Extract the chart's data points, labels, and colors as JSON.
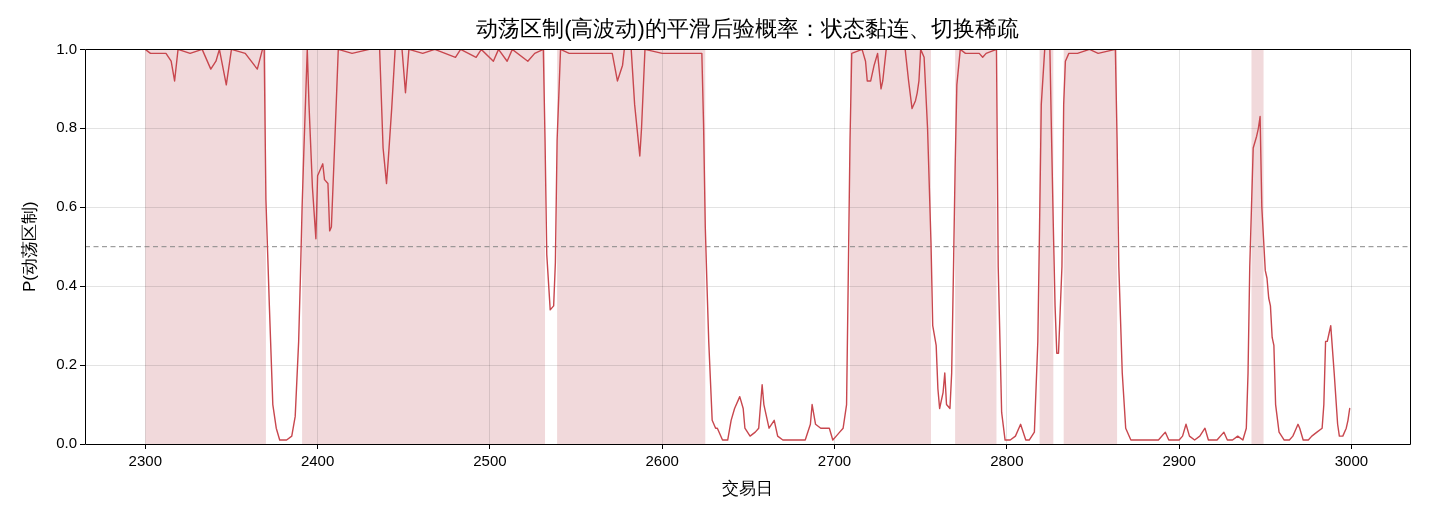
{
  "chart_data": {
    "type": "line",
    "title": "动荡区制(高波动)的平滑后验概率：状态黏连、切换稀疏",
    "xlabel": "交易日",
    "ylabel": "P(动荡区制)",
    "series": [
      {
        "color": "#c8474e",
        "x": [
          2300,
          2303,
          2312,
          2315,
          2317,
          2319,
          2326,
          2333,
          2338,
          2341,
          2343,
          2347,
          2350,
          2358,
          2365,
          2368,
          2369,
          2370,
          2372,
          2374,
          2376,
          2378,
          2382,
          2385,
          2387,
          2389,
          2390,
          2391,
          2392,
          2394,
          2395,
          2397,
          2399,
          2400,
          2403,
          2404,
          2406,
          2407,
          2408,
          2410,
          2412,
          2420,
          2430,
          2436,
          2438,
          2440,
          2441,
          2443,
          2445,
          2449,
          2451,
          2453,
          2461,
          2468,
          2480,
          2483,
          2492,
          2495,
          2502,
          2505,
          2510,
          2513,
          2522,
          2526,
          2531,
          2532,
          2533,
          2535,
          2537,
          2538,
          2539,
          2541,
          2546,
          2552,
          2559,
          2565,
          2571,
          2574,
          2577,
          2578,
          2582,
          2584,
          2587,
          2588,
          2590,
          2600,
          2610,
          2620,
          2623,
          2624,
          2625,
          2626,
          2627,
          2629,
          2631,
          2632,
          2635,
          2638,
          2640,
          2642,
          2645,
          2647,
          2648,
          2651,
          2654,
          2656,
          2658,
          2659,
          2662,
          2665,
          2667,
          2670,
          2677,
          2683,
          2686,
          2687,
          2689,
          2692,
          2694,
          2697,
          2699,
          2701,
          2703,
          2705,
          2707,
          2708,
          2709,
          2710,
          2716,
          2718,
          2719,
          2721,
          2723,
          2725,
          2727,
          2728,
          2730,
          2741,
          2743,
          2745,
          2747,
          2748,
          2749,
          2750,
          2752,
          2754,
          2756,
          2757,
          2759,
          2760,
          2761,
          2763,
          2764,
          2765,
          2767,
          2768,
          2769,
          2770,
          2771,
          2773,
          2776,
          2784,
          2786,
          2788,
          2794,
          2795,
          2797,
          2799,
          2802,
          2805,
          2808,
          2811,
          2813,
          2816,
          2818,
          2819,
          2820,
          2822,
          2825,
          2826,
          2827,
          2828,
          2829,
          2830,
          2832,
          2833,
          2834,
          2836,
          2841,
          2848,
          2853,
          2863,
          2864,
          2865,
          2867,
          2869,
          2872,
          2875,
          2880,
          2883,
          2888,
          2892,
          2894,
          2900,
          2902,
          2904,
          2906,
          2909,
          2912,
          2915,
          2917,
          2922,
          2926,
          2928,
          2931,
          2934,
          2937,
          2939,
          2940,
          2941,
          2942,
          2943,
          2945,
          2946,
          2947,
          2948,
          2949,
          2950,
          2951,
          2952,
          2953,
          2954,
          2955,
          2956,
          2958,
          2961,
          2964,
          2966,
          2967,
          2969,
          2970,
          2972,
          2975,
          2977,
          2980,
          2983,
          2984,
          2985,
          2986,
          2987,
          2988,
          2990,
          2992,
          2993,
          2995,
          2997,
          2998,
          2999
        ],
        "values": [
          1.0,
          0.99,
          0.99,
          0.97,
          0.92,
          1.0,
          0.99,
          1.0,
          0.95,
          0.97,
          1.0,
          0.91,
          1.0,
          0.99,
          0.95,
          1.0,
          1.0,
          0.62,
          0.35,
          0.1,
          0.04,
          0.01,
          0.01,
          0.02,
          0.07,
          0.26,
          0.42,
          0.6,
          0.74,
          1.0,
          0.86,
          0.65,
          0.52,
          0.68,
          0.71,
          0.67,
          0.66,
          0.54,
          0.55,
          0.77,
          1.0,
          0.99,
          1.0,
          1.0,
          0.75,
          0.66,
          0.72,
          0.85,
          1.0,
          1.0,
          0.89,
          1.0,
          0.99,
          1.0,
          0.98,
          1.0,
          0.98,
          1.0,
          0.97,
          1.0,
          0.97,
          1.0,
          0.97,
          0.99,
          1.0,
          0.77,
          0.48,
          0.34,
          0.35,
          0.46,
          0.77,
          1.0,
          0.99,
          0.99,
          0.99,
          0.99,
          0.99,
          0.92,
          0.96,
          1.0,
          1.0,
          0.86,
          0.73,
          0.8,
          1.0,
          0.99,
          0.99,
          0.99,
          0.99,
          0.81,
          0.55,
          0.4,
          0.26,
          0.06,
          0.04,
          0.04,
          0.01,
          0.01,
          0.06,
          0.09,
          0.12,
          0.09,
          0.04,
          0.02,
          0.03,
          0.04,
          0.15,
          0.1,
          0.04,
          0.06,
          0.02,
          0.01,
          0.01,
          0.01,
          0.05,
          0.1,
          0.05,
          0.04,
          0.04,
          0.04,
          0.01,
          0.02,
          0.03,
          0.04,
          0.1,
          0.43,
          0.77,
          0.99,
          1.0,
          0.97,
          0.92,
          0.92,
          0.96,
          0.99,
          0.9,
          0.92,
          1.0,
          1.0,
          0.92,
          0.85,
          0.87,
          0.89,
          0.92,
          1.0,
          0.98,
          0.8,
          0.51,
          0.3,
          0.25,
          0.14,
          0.09,
          0.13,
          0.18,
          0.1,
          0.09,
          0.18,
          0.43,
          0.7,
          0.91,
          1.0,
          0.99,
          0.99,
          0.98,
          0.99,
          1.0,
          0.45,
          0.08,
          0.01,
          0.01,
          0.02,
          0.05,
          0.01,
          0.01,
          0.03,
          0.26,
          0.55,
          0.86,
          1.0,
          1.0,
          0.77,
          0.55,
          0.35,
          0.23,
          0.23,
          0.45,
          0.86,
          0.97,
          0.99,
          0.99,
          1.0,
          0.99,
          1.0,
          0.77,
          0.45,
          0.18,
          0.04,
          0.01,
          0.01,
          0.01,
          0.01,
          0.01,
          0.03,
          0.01,
          0.01,
          0.02,
          0.05,
          0.02,
          0.01,
          0.02,
          0.04,
          0.01,
          0.01,
          0.03,
          0.01,
          0.01,
          0.02,
          0.01,
          0.04,
          0.18,
          0.45,
          0.6,
          0.75,
          0.78,
          0.8,
          0.83,
          0.6,
          0.52,
          0.44,
          0.42,
          0.37,
          0.35,
          0.27,
          0.25,
          0.1,
          0.03,
          0.01,
          0.01,
          0.02,
          0.03,
          0.05,
          0.04,
          0.01,
          0.01,
          0.02,
          0.03,
          0.04,
          0.1,
          0.26,
          0.26,
          0.28,
          0.3,
          0.18,
          0.05,
          0.02,
          0.02,
          0.04,
          0.06,
          0.09
        ]
      }
    ],
    "bands": [
      {
        "axis": "x",
        "from": 2300,
        "to": 2370,
        "color": "#f1d9db"
      },
      {
        "axis": "x",
        "from": 2391,
        "to": 2532,
        "color": "#f1d9db"
      },
      {
        "axis": "x",
        "from": 2539,
        "to": 2625,
        "color": "#f1d9db"
      },
      {
        "axis": "x",
        "from": 2709,
        "to": 2756,
        "color": "#f1d9db"
      },
      {
        "axis": "x",
        "from": 2770,
        "to": 2794,
        "color": "#f1d9db"
      },
      {
        "axis": "x",
        "from": 2819,
        "to": 2827,
        "color": "#f1d9db"
      },
      {
        "axis": "x",
        "from": 2833,
        "to": 2864,
        "color": "#f1d9db"
      },
      {
        "axis": "x",
        "from": 2942,
        "to": 2949,
        "color": "#f1d9db"
      }
    ],
    "ref_lines": [
      {
        "axis": "y",
        "value": 0.5,
        "color": "#888888",
        "line_style": "dashed"
      }
    ],
    "xlim": [
      2265,
      3034
    ],
    "xticks": [
      2300,
      2400,
      2500,
      2600,
      2700,
      2800,
      2900,
      3000
    ],
    "ylim": [
      0,
      1
    ],
    "yticks": [
      {
        "value": 0,
        "label": "0.0"
      },
      0.2,
      0.4,
      0.6,
      0.8,
      {
        "value": 1,
        "label": "1.0"
      }
    ],
    "grid": true,
    "marker": "none",
    "line_style": "solid"
  }
}
